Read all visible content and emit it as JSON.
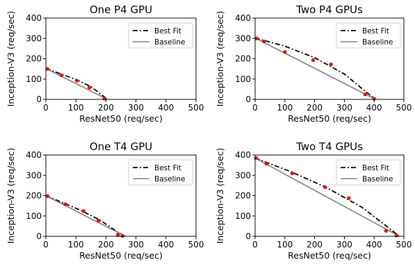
{
  "chart_data": [
    {
      "type": "line",
      "title": "One P4 GPU",
      "xlabel": "ResNet50 (req/sec)",
      "ylabel": "Inception-V3 (req/sec)",
      "xlim": [
        0,
        500
      ],
      "ylim": [
        0,
        400
      ],
      "xticks": [
        0,
        100,
        200,
        300,
        400,
        500
      ],
      "yticks": [
        0,
        100,
        200,
        300,
        400
      ],
      "legend": "top-right",
      "series": [
        {
          "name": "Best Fit",
          "style": "dashdot",
          "color": "#000000",
          "x": [
            0,
            50,
            100,
            150,
            190,
            205
          ],
          "y": [
            152,
            125,
            98,
            63,
            18,
            0
          ]
        },
        {
          "name": "Baseline",
          "style": "solid",
          "color": "#808080",
          "x": [
            0,
            205
          ],
          "y": [
            152,
            0
          ]
        },
        {
          "name": "measured",
          "style": "points",
          "color": "#e3120b",
          "x": [
            5,
            52,
            103,
            145,
            195
          ],
          "y": [
            150,
            118,
            92,
            58,
            4
          ]
        }
      ]
    },
    {
      "type": "line",
      "title": "Two P4 GPUs",
      "xlabel": "ResNet50 (req/sec)",
      "ylabel": "Inception-V3 (req/sec)",
      "xlim": [
        0,
        500
      ],
      "ylim": [
        0,
        400
      ],
      "xticks": [
        0,
        100,
        200,
        300,
        400,
        500
      ],
      "yticks": [
        0,
        100,
        200,
        300,
        400
      ],
      "legend": "top-right",
      "series": [
        {
          "name": "Best Fit",
          "style": "dashdot",
          "color": "#000000",
          "x": [
            0,
            100,
            200,
            300,
            360,
            405
          ],
          "y": [
            302,
            262,
            205,
            125,
            52,
            0
          ]
        },
        {
          "name": "Baseline",
          "style": "solid",
          "color": "#808080",
          "x": [
            0,
            405
          ],
          "y": [
            302,
            0
          ]
        },
        {
          "name": "measured",
          "style": "points",
          "color": "#e3120b",
          "x": [
            5,
            30,
            100,
            195,
            255,
            370,
            400
          ],
          "y": [
            300,
            285,
            233,
            193,
            172,
            25,
            3
          ]
        }
      ]
    },
    {
      "type": "line",
      "title": "One T4 GPU",
      "xlabel": "ResNet50 (req/sec)",
      "ylabel": "Inception-V3 (req/sec)",
      "xlim": [
        0,
        500
      ],
      "ylim": [
        0,
        400
      ],
      "xticks": [
        0,
        100,
        200,
        300,
        400,
        500
      ],
      "yticks": [
        0,
        100,
        200,
        300,
        400
      ],
      "legend": "top-right",
      "series": [
        {
          "name": "Best Fit",
          "style": "dashdot",
          "color": "#000000",
          "x": [
            0,
            60,
            120,
            180,
            240,
            265
          ],
          "y": [
            200,
            163,
            125,
            80,
            20,
            0
          ]
        },
        {
          "name": "Baseline",
          "style": "solid",
          "color": "#808080",
          "x": [
            0,
            265
          ],
          "y": [
            200,
            0
          ]
        },
        {
          "name": "measured",
          "style": "points",
          "color": "#e3120b",
          "x": [
            5,
            65,
            125,
            175,
            240,
            255
          ],
          "y": [
            198,
            158,
            124,
            77,
            8,
            2
          ]
        }
      ]
    },
    {
      "type": "line",
      "title": "Two T4 GPUs",
      "xlabel": "ResNet50 (req/sec)",
      "ylabel": "Inception-V3 (req/sec)",
      "xlim": [
        0,
        500
      ],
      "ylim": [
        0,
        400
      ],
      "xticks": [
        0,
        100,
        200,
        300,
        400,
        500
      ],
      "yticks": [
        0,
        100,
        200,
        300,
        400
      ],
      "legend": "top-right",
      "series": [
        {
          "name": "Best Fit",
          "style": "dashdot",
          "color": "#000000",
          "x": [
            0,
            120,
            240,
            360,
            440,
            485
          ],
          "y": [
            385,
            318,
            240,
            142,
            52,
            0
          ]
        },
        {
          "name": "Baseline",
          "style": "solid",
          "color": "#808080",
          "x": [
            0,
            485
          ],
          "y": [
            385,
            0
          ]
        },
        {
          "name": "measured",
          "style": "points",
          "color": "#e3120b",
          "x": [
            3,
            38,
            125,
            235,
            315,
            440,
            475
          ],
          "y": [
            385,
            357,
            310,
            242,
            188,
            27,
            4
          ]
        }
      ]
    }
  ]
}
